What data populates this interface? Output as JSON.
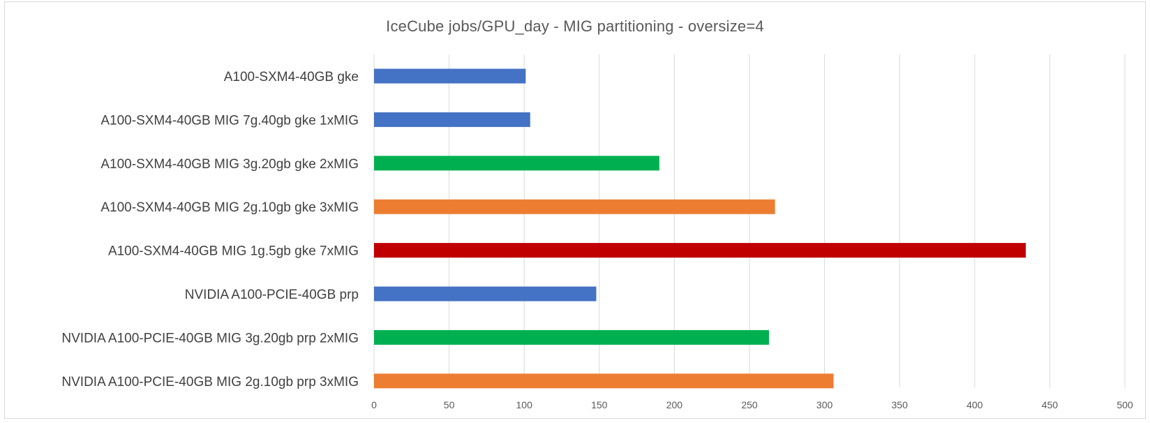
{
  "chart_data": {
    "type": "bar",
    "orientation": "horizontal",
    "title": "IceCube jobs/GPU_day - MIG partitioning - oversize=4",
    "xlabel": "",
    "ylabel": "",
    "xlim": [
      0,
      500
    ],
    "xticks": [
      0,
      50,
      100,
      150,
      200,
      250,
      300,
      350,
      400,
      450,
      500
    ],
    "grid": "vertical",
    "legend": "none",
    "categories": [
      "A100-SXM4-40GB gke",
      "A100-SXM4-40GB MIG 7g.40gb gke 1xMIG",
      "A100-SXM4-40GB MIG 3g.20gb gke 2xMIG",
      "A100-SXM4-40GB MIG 2g.10gb gke 3xMIG",
      "A100-SXM4-40GB MIG 1g.5gb gke 7xMIG",
      "NVIDIA A100-PCIE-40GB prp",
      "NVIDIA A100-PCIE-40GB MIG 3g.20gb prp 2xMIG",
      "NVIDIA A100-PCIE-40GB MIG 2g.10gb prp 3xMIG"
    ],
    "values": [
      101,
      104,
      190,
      267,
      434,
      148,
      263,
      306
    ],
    "bar_colors": [
      "#4472c4",
      "#4472c4",
      "#00b050",
      "#ed7d31",
      "#c00000",
      "#4472c4",
      "#00b050",
      "#ed7d31"
    ]
  }
}
